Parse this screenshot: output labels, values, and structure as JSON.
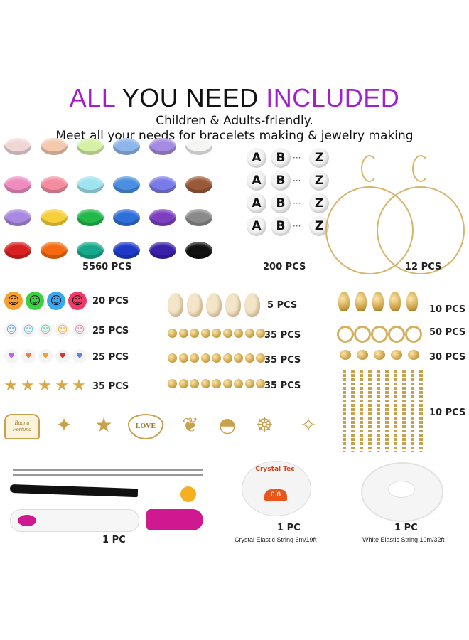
{
  "header": {
    "title_part1": "ALL",
    "title_part2": " YOU NEED ",
    "title_part3": "INCLUDED",
    "accent_color": "#a21fd0",
    "subtitle1": "Children & Adults-friendly.",
    "subtitle2": "Meet all your needs for bracelets making & jewelry making"
  },
  "clay_beads": {
    "label": "5560 PCS",
    "colors": [
      [
        "#f1d6d6",
        "#f3c9b0",
        "#d6f0a6",
        "#8fb6ea",
        "#a58be0",
        "#f5f5f2"
      ],
      [
        "#f08bc0",
        "#f48ca0",
        "#9fe3f0",
        "#4a8fe0",
        "#7a7be8",
        "#9a5a38"
      ],
      [
        "#a888e0",
        "#f5d03a",
        "#22b84a",
        "#2f6fd8",
        "#7c3fc0",
        "#8a8a8a"
      ],
      [
        "#d82020",
        "#f56a10",
        "#16a88a",
        "#1f3ac8",
        "#3a1fa8",
        "#111111"
      ]
    ]
  },
  "letter_beads": {
    "label": "200 PCS",
    "letters": [
      "A",
      "B",
      "Z"
    ],
    "ellipsis": "···"
  },
  "earrings": {
    "label": "12 PCS"
  },
  "smiley_beads": {
    "label": "20 PCS",
    "colors": [
      "#f5a030",
      "#3ad040",
      "#38a8f0",
      "#f03a6a"
    ]
  },
  "white_smiley_beads": {
    "label": "25 PCS",
    "colors": [
      "#5aa8f0",
      "#7ac0e0",
      "#6ad0a8",
      "#f0b040",
      "#f08ab0"
    ]
  },
  "heart_beads": {
    "label": "25 PCS",
    "colors": [
      "#c060e0",
      "#f07a50",
      "#f0a030",
      "#e03030",
      "#6080f0"
    ]
  },
  "star_beads": {
    "label": "35 PCS"
  },
  "shells": {
    "label": "5 PCS"
  },
  "spacer_beads": [
    {
      "label": "35 PCS"
    },
    {
      "label": "35 PCS"
    },
    {
      "label": "35 PCS"
    }
  ],
  "lobster_clasps": {
    "label": "10 PCS"
  },
  "jump_rings": {
    "label": "50 PCS"
  },
  "crimp_ends": {
    "label": "30 PCS"
  },
  "extension_chains": {
    "label": "10 PCS"
  },
  "charms": [
    "elephant-charm-icon",
    "starfish-charm-icon",
    "star-charm-icon",
    "love-heart-charm-icon",
    "leaf-charm-icon",
    "shell-charm-icon",
    "helm-charm-icon",
    "turtle-charm-icon",
    "angel-charm-icon"
  ],
  "charm_texts": {
    "elephant": "Buona Fortuna",
    "heart": "LOVE"
  },
  "tools": {
    "label": "1 PC"
  },
  "crystal_string": {
    "count": "1 PC",
    "desc": "Crystal Elastic String 6m/19ft",
    "brand": "Crystal Tec",
    "size": "0.8"
  },
  "white_string": {
    "count": "1 PC",
    "desc": "White Elastic String 10m/32ft"
  }
}
